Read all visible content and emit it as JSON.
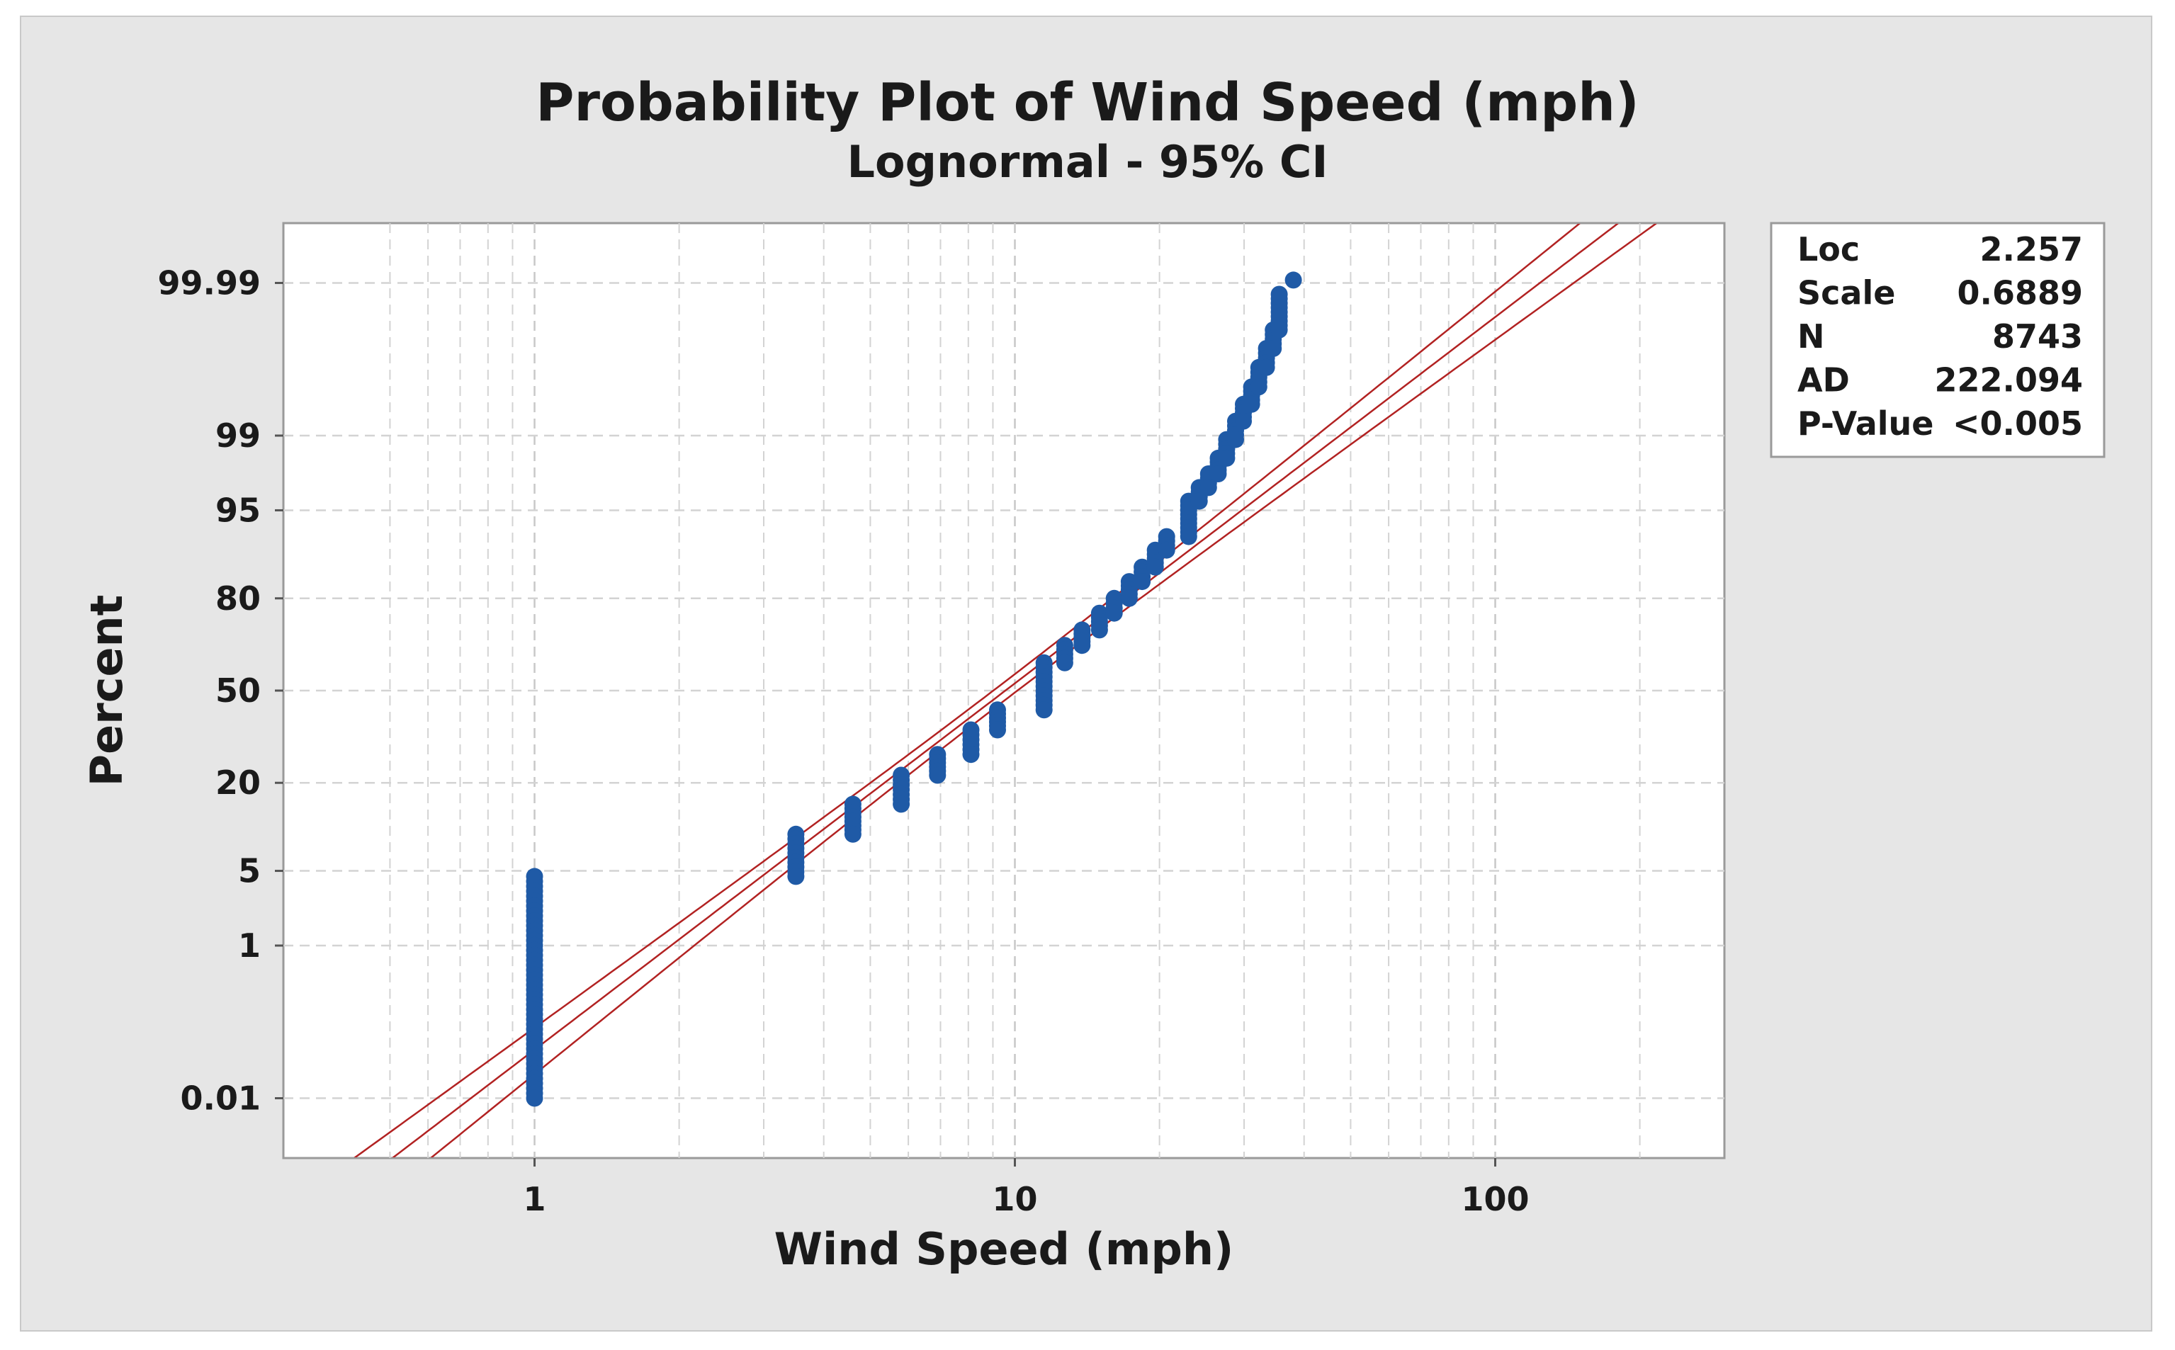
{
  "chart_data": {
    "type": "scatter",
    "title": "Probability Plot of Wind Speed (mph)",
    "subtitle": "Lognormal - 95% CI",
    "xlabel": "Wind Speed (mph)",
    "ylabel": "Percent",
    "x_scale": "log",
    "xlim": [
      0.3,
      300
    ],
    "x_ticks": [
      {
        "value": 1,
        "label": "1"
      },
      {
        "value": 10,
        "label": "10"
      },
      {
        "value": 100,
        "label": "100"
      }
    ],
    "y_scale": "normal-probability",
    "ylim_percent": [
      0.001,
      99.999
    ],
    "y_ticks": [
      {
        "value": 0.01,
        "label": "0.01"
      },
      {
        "value": 1,
        "label": "1"
      },
      {
        "value": 5,
        "label": "5"
      },
      {
        "value": 20,
        "label": "20"
      },
      {
        "value": 50,
        "label": "50"
      },
      {
        "value": 80,
        "label": "80"
      },
      {
        "value": 95,
        "label": "95"
      },
      {
        "value": 99,
        "label": "99"
      },
      {
        "value": 99.99,
        "label": "99.99"
      }
    ],
    "grid": true,
    "fit": {
      "distribution": "lognormal",
      "loc": 2.257,
      "scale": 0.6889,
      "ci": "95%",
      "color": "#b22222"
    },
    "point_color": "#1f5aa6",
    "series": [
      {
        "name": "Wind Speed (mph)",
        "groups": [
          {
            "x": 1.0,
            "p_low": 0.01,
            "p_high": 4.5
          },
          {
            "x": 3.5,
            "p_low": 4.5,
            "p_high": 9.5
          },
          {
            "x": 4.6,
            "p_low": 9.5,
            "p_high": 15.0
          },
          {
            "x": 5.8,
            "p_low": 15.0,
            "p_high": 22.0
          },
          {
            "x": 6.9,
            "p_low": 22.0,
            "p_high": 28.0
          },
          {
            "x": 8.1,
            "p_low": 28.0,
            "p_high": 36.0
          },
          {
            "x": 9.2,
            "p_low": 36.0,
            "p_high": 43.0
          },
          {
            "x": 11.5,
            "p_low": 43.0,
            "p_high": 60.0
          },
          {
            "x": 12.7,
            "p_low": 60.0,
            "p_high": 66.0
          },
          {
            "x": 13.8,
            "p_low": 66.0,
            "p_high": 71.0
          },
          {
            "x": 15.0,
            "p_low": 71.0,
            "p_high": 76.0
          },
          {
            "x": 16.1,
            "p_low": 76.0,
            "p_high": 80.0
          },
          {
            "x": 17.3,
            "p_low": 80.0,
            "p_high": 84.0
          },
          {
            "x": 18.4,
            "p_low": 84.0,
            "p_high": 87.0
          },
          {
            "x": 19.6,
            "p_low": 87.0,
            "p_high": 90.0
          },
          {
            "x": 20.7,
            "p_low": 90.0,
            "p_high": 92.0
          },
          {
            "x": 23.0,
            "p_low": 92.0,
            "p_high": 95.8
          },
          {
            "x": 24.2,
            "p_low": 95.8,
            "p_high": 96.8
          },
          {
            "x": 25.3,
            "p_low": 96.8,
            "p_high": 97.6
          },
          {
            "x": 26.5,
            "p_low": 97.6,
            "p_high": 98.3
          },
          {
            "x": 27.6,
            "p_low": 98.3,
            "p_high": 98.9
          },
          {
            "x": 28.8,
            "p_low": 98.9,
            "p_high": 99.3
          },
          {
            "x": 29.9,
            "p_low": 99.3,
            "p_high": 99.55
          },
          {
            "x": 31.1,
            "p_low": 99.55,
            "p_high": 99.72
          },
          {
            "x": 32.2,
            "p_low": 99.72,
            "p_high": 99.84
          },
          {
            "x": 33.4,
            "p_low": 99.84,
            "p_high": 99.91
          },
          {
            "x": 34.5,
            "p_low": 99.91,
            "p_high": 99.95
          },
          {
            "x": 35.5,
            "p_low": 99.95,
            "p_high": 99.985
          },
          {
            "x": 38.0,
            "p_low": 99.991,
            "p_high": 99.991
          }
        ]
      }
    ],
    "stats": [
      {
        "label": "Loc",
        "value": "2.257"
      },
      {
        "label": "Scale",
        "value": "0.6889"
      },
      {
        "label": "N",
        "value": "8743"
      },
      {
        "label": "AD",
        "value": "222.094"
      },
      {
        "label": "P-Value",
        "value": "<0.005"
      }
    ]
  }
}
